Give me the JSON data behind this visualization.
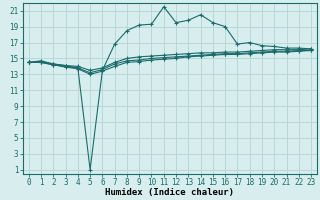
{
  "xlabel": "Humidex (Indice chaleur)",
  "background_color": "#d8eeee",
  "grid_color": "#b8d8d8",
  "line_color": "#1a6b6b",
  "x_values": [
    0,
    1,
    2,
    3,
    4,
    5,
    6,
    7,
    8,
    9,
    10,
    11,
    12,
    13,
    14,
    15,
    16,
    17,
    18,
    19,
    20,
    21,
    22,
    23
  ],
  "series": [
    [
      14.5,
      14.7,
      14.3,
      14.1,
      13.8,
      1.0,
      13.5,
      16.8,
      18.5,
      19.2,
      19.3,
      21.5,
      19.5,
      19.8,
      20.5,
      19.5,
      19.0,
      16.8,
      17.0,
      16.6,
      16.5,
      16.3,
      16.3,
      16.2
    ],
    [
      14.5,
      14.6,
      14.3,
      14.1,
      14.0,
      13.5,
      13.8,
      14.5,
      15.0,
      15.2,
      15.3,
      15.4,
      15.5,
      15.6,
      15.7,
      15.7,
      15.8,
      15.8,
      15.9,
      16.0,
      16.1,
      16.1,
      16.1,
      16.2
    ],
    [
      14.5,
      14.5,
      14.2,
      14.0,
      13.8,
      13.2,
      13.6,
      14.3,
      14.7,
      14.8,
      15.0,
      15.1,
      15.2,
      15.3,
      15.4,
      15.5,
      15.6,
      15.6,
      15.7,
      15.8,
      15.9,
      15.9,
      16.0,
      16.0
    ],
    [
      14.5,
      14.5,
      14.2,
      13.9,
      13.7,
      13.0,
      13.4,
      14.0,
      14.5,
      14.6,
      14.8,
      14.9,
      15.0,
      15.2,
      15.3,
      15.4,
      15.5,
      15.5,
      15.6,
      15.7,
      15.8,
      15.8,
      15.9,
      16.0
    ]
  ],
  "ylim_min": 0.5,
  "ylim_max": 22,
  "xlim_min": -0.5,
  "xlim_max": 23.5,
  "yticks": [
    1,
    3,
    5,
    7,
    9,
    11,
    13,
    15,
    17,
    19,
    21
  ],
  "xticks": [
    0,
    1,
    2,
    3,
    4,
    5,
    6,
    7,
    8,
    9,
    10,
    11,
    12,
    13,
    14,
    15,
    16,
    17,
    18,
    19,
    20,
    21,
    22,
    23
  ],
  "marker": "+",
  "marker_size": 3.5,
  "linewidth": 0.8,
  "tick_fontsize": 5.5,
  "xlabel_fontsize": 6.5
}
